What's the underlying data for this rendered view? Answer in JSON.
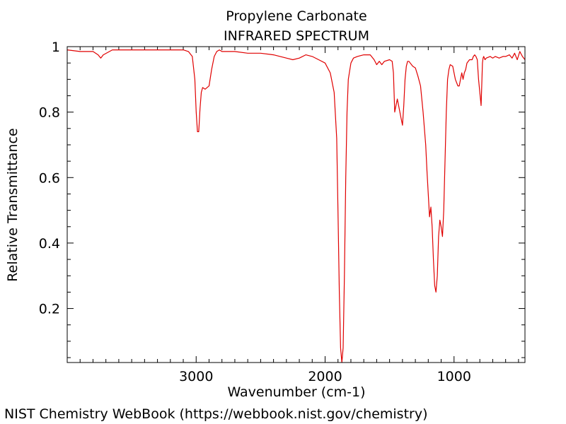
{
  "footer": "NIST Chemistry WebBook (https://webbook.nist.gov/chemistry)",
  "chart_data": {
    "type": "line",
    "title": "Propylene Carbonate",
    "subtitle": "INFRARED SPECTRUM",
    "xlabel": "Wavenumber (cm-1)",
    "ylabel": "Relative Transmittance",
    "xlim": [
      4000,
      450
    ],
    "ylim": [
      0.035,
      1.0
    ],
    "x_reversed": true,
    "grid": false,
    "x_ticks": [
      3000,
      2000,
      1000
    ],
    "x_tick_labels": [
      "3000",
      "2000",
      "1000"
    ],
    "y_ticks": [
      0.2,
      0.4,
      0.6,
      0.8,
      1.0
    ],
    "y_tick_labels": [
      "0.2",
      "0.4",
      "0.6",
      "0.8",
      "1"
    ],
    "line_color": "#e00000",
    "series": [
      {
        "x": [
          4000,
          3900,
          3800,
          3760,
          3740,
          3720,
          3650,
          3400,
          3200,
          3100,
          3060,
          3030,
          3010,
          3000,
          2990,
          2980,
          2970,
          2960,
          2950,
          2930,
          2900,
          2880,
          2860,
          2840,
          2820,
          2800,
          2700,
          2600,
          2500,
          2400,
          2300,
          2250,
          2200,
          2150,
          2100,
          2050,
          2000,
          1960,
          1930,
          1910,
          1900,
          1890,
          1880,
          1870,
          1860,
          1850,
          1840,
          1830,
          1820,
          1800,
          1780,
          1750,
          1700,
          1650,
          1620,
          1600,
          1580,
          1560,
          1540,
          1500,
          1480,
          1470,
          1460,
          1450,
          1440,
          1430,
          1410,
          1400,
          1390,
          1380,
          1370,
          1360,
          1350,
          1340,
          1320,
          1300,
          1280,
          1260,
          1240,
          1220,
          1210,
          1200,
          1190,
          1180,
          1170,
          1160,
          1150,
          1140,
          1130,
          1120,
          1110,
          1100,
          1090,
          1080,
          1070,
          1060,
          1050,
          1040,
          1030,
          1010,
          990,
          970,
          960,
          950,
          940,
          930,
          920,
          910,
          900,
          880,
          860,
          850,
          840,
          830,
          820,
          810,
          800,
          790,
          785,
          780,
          775,
          770,
          760,
          750,
          720,
          700,
          680,
          650,
          620,
          600,
          570,
          550,
          530,
          510,
          490,
          470,
          450
        ],
        "y": [
          0.99,
          0.985,
          0.985,
          0.975,
          0.965,
          0.975,
          0.99,
          0.99,
          0.99,
          0.99,
          0.985,
          0.97,
          0.9,
          0.8,
          0.74,
          0.74,
          0.81,
          0.86,
          0.875,
          0.87,
          0.88,
          0.93,
          0.97,
          0.985,
          0.99,
          0.985,
          0.985,
          0.98,
          0.98,
          0.975,
          0.965,
          0.96,
          0.965,
          0.975,
          0.97,
          0.96,
          0.95,
          0.92,
          0.86,
          0.72,
          0.5,
          0.25,
          0.08,
          0.035,
          0.08,
          0.3,
          0.6,
          0.8,
          0.9,
          0.95,
          0.965,
          0.97,
          0.975,
          0.975,
          0.96,
          0.945,
          0.955,
          0.945,
          0.955,
          0.96,
          0.955,
          0.92,
          0.8,
          0.82,
          0.84,
          0.82,
          0.78,
          0.76,
          0.82,
          0.9,
          0.94,
          0.955,
          0.955,
          0.95,
          0.94,
          0.935,
          0.91,
          0.88,
          0.8,
          0.7,
          0.62,
          0.55,
          0.48,
          0.51,
          0.45,
          0.35,
          0.27,
          0.25,
          0.3,
          0.42,
          0.47,
          0.45,
          0.42,
          0.5,
          0.65,
          0.8,
          0.9,
          0.93,
          0.945,
          0.94,
          0.9,
          0.88,
          0.88,
          0.9,
          0.92,
          0.9,
          0.92,
          0.93,
          0.95,
          0.96,
          0.96,
          0.97,
          0.975,
          0.97,
          0.96,
          0.9,
          0.86,
          0.82,
          0.88,
          0.95,
          0.965,
          0.97,
          0.96,
          0.965,
          0.97,
          0.965,
          0.97,
          0.965,
          0.97,
          0.97,
          0.975,
          0.965,
          0.98,
          0.96,
          0.985,
          0.97,
          0.96
        ]
      }
    ]
  }
}
